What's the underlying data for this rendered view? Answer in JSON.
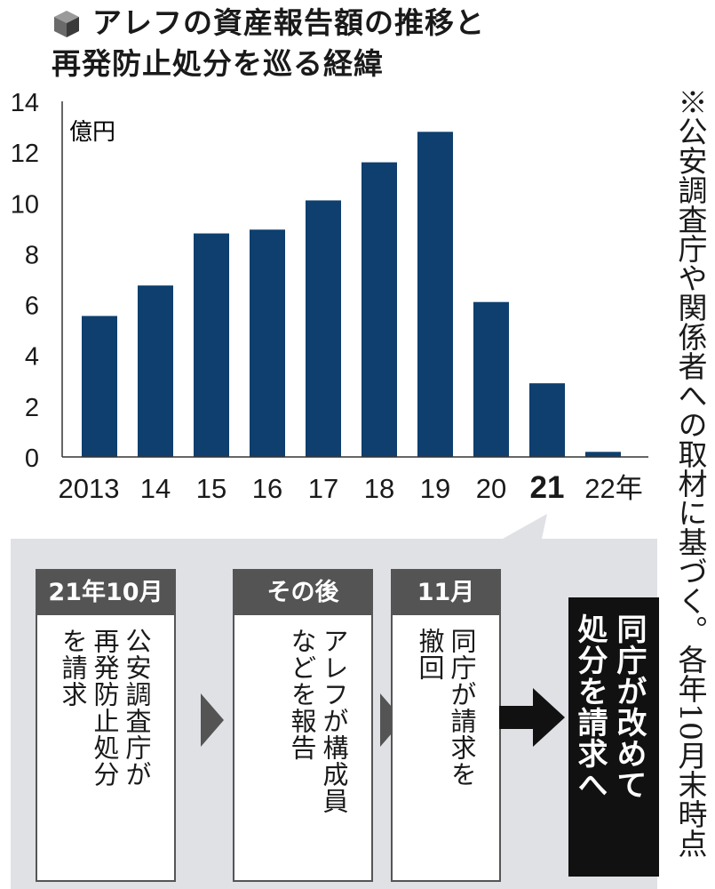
{
  "title": {
    "line1": "アレフの資産報告額の推移と",
    "line2": "再発防止処分を巡る経緯"
  },
  "chart_data": {
    "type": "bar",
    "unit_label": "億円",
    "categories": [
      "2013",
      "14",
      "15",
      "16",
      "17",
      "18",
      "19",
      "20",
      "21",
      "22年"
    ],
    "highlight_category": "21",
    "values": [
      5.55,
      6.75,
      8.8,
      8.95,
      10.1,
      11.6,
      12.8,
      6.1,
      2.9,
      0.2
    ],
    "ylim": [
      0,
      14
    ],
    "yticks": [
      0,
      2,
      4,
      6,
      8,
      10,
      12,
      14
    ],
    "bar_color": "#0e3f6e",
    "grid": false
  },
  "note": "※公安調査庁や関係者への取材に基づく。各年10月末時点",
  "timeline": {
    "steps": [
      {
        "header": "21年10月",
        "body": "公安調査庁が\n再発防止処分\nを請求"
      },
      {
        "header": "その後",
        "body": "アレフが構成員\nなどを報告"
      },
      {
        "header": "11月",
        "body": "同庁が請求を\n撤回"
      }
    ],
    "result": "同庁が改めて\n処分を請求へ"
  },
  "colors": {
    "panel": "#dfe1e5",
    "step_header": "#545454",
    "result_box": "#111111"
  }
}
